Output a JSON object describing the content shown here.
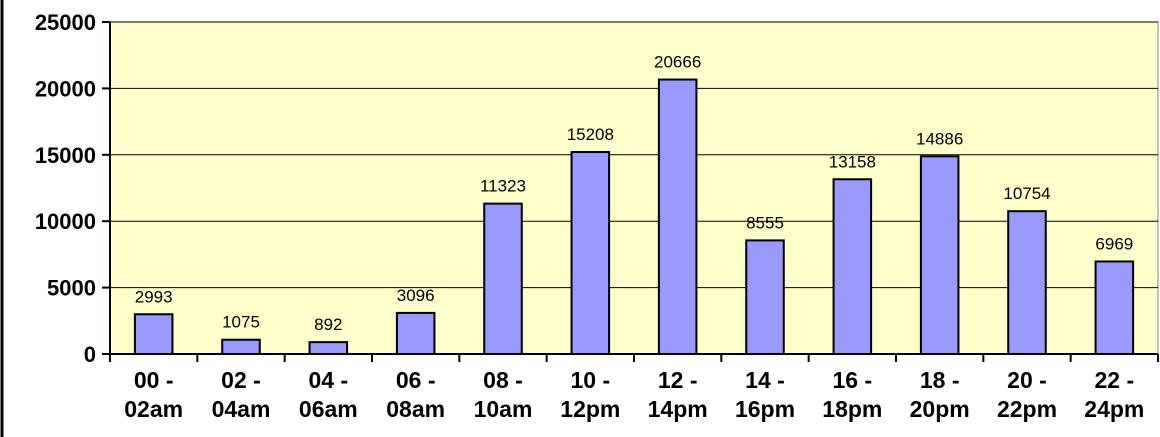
{
  "chart_data": {
    "type": "bar",
    "title": "",
    "xlabel": "",
    "ylabel": "",
    "ylim": [
      0,
      25000
    ],
    "yticks": [
      0,
      5000,
      10000,
      15000,
      20000,
      25000
    ],
    "grid": true,
    "legend": "none",
    "categories": [
      [
        "00 -",
        "02am"
      ],
      [
        "02 -",
        "04am"
      ],
      [
        "04 -",
        "06am"
      ],
      [
        "06 -",
        "08am"
      ],
      [
        "08 -",
        "10am"
      ],
      [
        "10 -",
        "12pm"
      ],
      [
        "12 -",
        "14pm"
      ],
      [
        "14 -",
        "16pm"
      ],
      [
        "16 -",
        "18pm"
      ],
      [
        "18 -",
        "20pm"
      ],
      [
        "20 -",
        "22pm"
      ],
      [
        "22 -",
        "24pm"
      ]
    ],
    "values": [
      2993,
      1075,
      892,
      3096,
      11323,
      15208,
      20666,
      8555,
      13158,
      14886,
      10754,
      6969
    ],
    "colors": {
      "plot_background": "#FFFFCC",
      "bar_fill": "#9999FF",
      "bar_stroke": "#000000",
      "gridline": "#000000"
    }
  }
}
